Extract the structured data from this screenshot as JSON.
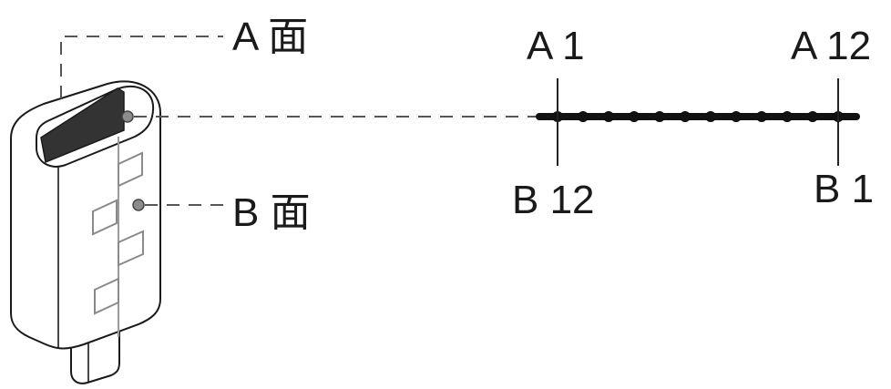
{
  "labels": {
    "face_a": "A 面",
    "face_b": "B 面",
    "pin_a1": "A 1",
    "pin_a12": "A 12",
    "pin_b12": "B 12",
    "pin_b1": "B 1"
  },
  "colors": {
    "tongue": "#333333",
    "marker": "#8c8c8c",
    "pin_outline": "#8a8a8a",
    "contact_row": "#111111"
  }
}
